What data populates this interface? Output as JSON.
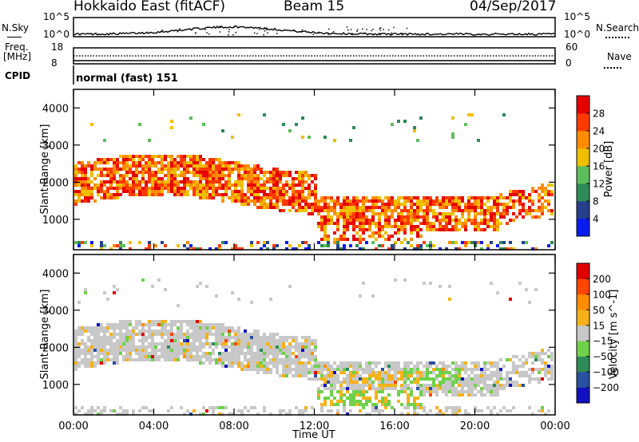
{
  "header": {
    "radar": "Hokkaido East (fitACF)",
    "beam": "Beam 15",
    "date": "04/Sep/2017"
  },
  "strip": {
    "nsky_label": "N.Sky",
    "nsearch_label": "N.Search",
    "freq_label_1": "Freq.",
    "freq_label_2": "[MHz]",
    "nave_label": "Nave",
    "cpid_label": "CPID",
    "cpid_value": "normal (fast) 151",
    "noise_ticks_left": [
      "10^5",
      "10^0"
    ],
    "noise_ticks_right": [
      "10^5",
      "10^0"
    ],
    "freq_ticks": [
      "18",
      "8"
    ],
    "nave_ticks": [
      "60",
      "0"
    ]
  },
  "chart_data": [
    {
      "type": "heatmap",
      "title": "",
      "xlabel": "",
      "ylabel": "Slant Range [km]",
      "x_ticks": [
        "00:00",
        "04:00",
        "08:00",
        "12:00",
        "16:00",
        "20:00",
        "00:00"
      ],
      "y_ticks": [
        1000,
        2000,
        3000,
        4000
      ],
      "ylim": [
        180,
        4500
      ],
      "colorbar": {
        "label": "Power [dB]",
        "ticks": [
          "4",
          "8",
          "12",
          "16",
          "20",
          "24",
          "28"
        ],
        "colors": [
          "#0a1cf0",
          "#27408b",
          "#2e8b57",
          "#5cbe5c",
          "#f0c000",
          "#ff8c00",
          "#ff3a00",
          "#e60000"
        ]
      }
    },
    {
      "type": "heatmap",
      "title": "",
      "xlabel": "Time UT",
      "ylabel": "Slant Range [km]",
      "x_ticks": [
        "00:00",
        "04:00",
        "08:00",
        "12:00",
        "16:00",
        "20:00",
        "00:00"
      ],
      "y_ticks": [
        1000,
        2000,
        3000,
        4000
      ],
      "ylim": [
        180,
        4500
      ],
      "colorbar": {
        "label": "Velocity [m s^-1]",
        "ticks": [
          "200",
          "100",
          "50",
          "15",
          "−15",
          "−50",
          "−100",
          "−200"
        ],
        "colors": [
          "#1010c0",
          "#2a50a0",
          "#2e8b57",
          "#6fd14a",
          "#c8c8c8",
          "#f5b21a",
          "#ff8c00",
          "#ff4500",
          "#e00000"
        ]
      }
    }
  ]
}
